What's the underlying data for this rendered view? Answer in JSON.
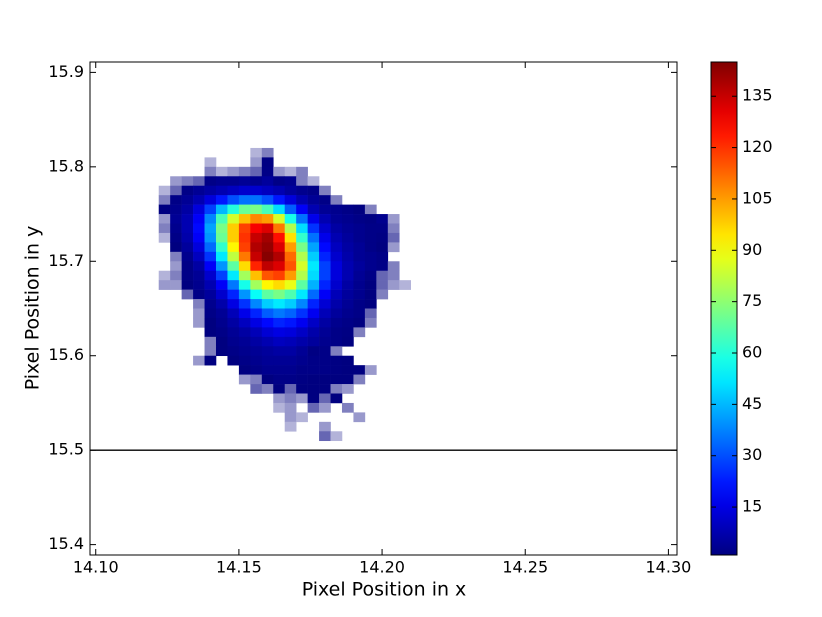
{
  "chart_data": {
    "type": "heatmap",
    "xlabel": "Pixel Position in x",
    "ylabel": "Pixel Position in y",
    "xlim": [
      14.098,
      14.303
    ],
    "ylim": [
      15.389,
      15.911
    ],
    "xticks": [
      {
        "value": 14.1,
        "label": "14.10"
      },
      14.15,
      {
        "value": 14.2,
        "label": "14.20"
      },
      14.25,
      {
        "value": 14.3,
        "label": "14.30"
      }
    ],
    "yticks": [
      15.4,
      15.5,
      15.6,
      15.7,
      15.8,
      15.9
    ],
    "hline": 15.5,
    "hline_color": "#000000",
    "colormap": "jet",
    "clim": [
      1,
      145
    ],
    "cticks": [
      15,
      30,
      45,
      60,
      75,
      90,
      105,
      120,
      135
    ],
    "x_bins": [
      14.122,
      14.126,
      14.13,
      14.134,
      14.138,
      14.142,
      14.146,
      14.15,
      14.154,
      14.158,
      14.162,
      14.166,
      14.17,
      14.174,
      14.178,
      14.182,
      14.186,
      14.19,
      14.194,
      14.198,
      14.202,
      14.206,
      14.21
    ],
    "y_bins": [
      15.82,
      15.81,
      15.8,
      15.79,
      15.78,
      15.77,
      15.76,
      15.75,
      15.74,
      15.73,
      15.72,
      15.71,
      15.7,
      15.69,
      15.68,
      15.67,
      15.66,
      15.65,
      15.64,
      15.63,
      15.62,
      15.61,
      15.6,
      15.59,
      15.58,
      15.57,
      15.56,
      15.55,
      15.54,
      15.53,
      15.52,
      15.51
    ],
    "z": [
      [
        null,
        null,
        null,
        null,
        null,
        null,
        null,
        null,
        0.3,
        0.5,
        null,
        null,
        null,
        null,
        null,
        null,
        null,
        null,
        null,
        null,
        null,
        null
      ],
      [
        null,
        null,
        null,
        null,
        0.3,
        null,
        null,
        null,
        0.4,
        1.5,
        null,
        null,
        null,
        null,
        null,
        null,
        null,
        null,
        null,
        null,
        null,
        null
      ],
      [
        null,
        null,
        null,
        null,
        0.5,
        0.3,
        0.4,
        0.5,
        0.6,
        2,
        0.4,
        0.3,
        0.5,
        null,
        null,
        null,
        null,
        null,
        null,
        null,
        null,
        null
      ],
      [
        null,
        0.4,
        0.5,
        0.6,
        2,
        3,
        3,
        4,
        3,
        5,
        2,
        3,
        0.5,
        0.3,
        null,
        null,
        null,
        null,
        null,
        null,
        null,
        null
      ],
      [
        0.3,
        0.6,
        2,
        4,
        6,
        8,
        10,
        12,
        12,
        10,
        8,
        5,
        3,
        2,
        0.5,
        null,
        null,
        null,
        null,
        null,
        null,
        null
      ],
      [
        0.5,
        2,
        4,
        8,
        14,
        22,
        30,
        35,
        35,
        30,
        22,
        14,
        8,
        4,
        2,
        0.5,
        null,
        null,
        null,
        null,
        null,
        null
      ],
      [
        1,
        3,
        6,
        14,
        28,
        45,
        60,
        70,
        72,
        65,
        50,
        32,
        18,
        8,
        4,
        3,
        2,
        1,
        0.5,
        null,
        null,
        null
      ],
      [
        0.4,
        4,
        8,
        18,
        38,
        65,
        85,
        100,
        108,
        105,
        85,
        58,
        35,
        16,
        8,
        4,
        3,
        2,
        1.5,
        3,
        0.4,
        null
      ],
      [
        0.5,
        3,
        8,
        20,
        42,
        72,
        98,
        118,
        128,
        132,
        110,
        80,
        50,
        26,
        12,
        6,
        4,
        3,
        2,
        2,
        0.5,
        null
      ],
      [
        0.3,
        2,
        7,
        18,
        40,
        70,
        98,
        120,
        135,
        140,
        125,
        95,
        62,
        35,
        16,
        8,
        5,
        3,
        2,
        1.5,
        0.6,
        null
      ],
      [
        null,
        1,
        5,
        14,
        34,
        62,
        92,
        118,
        138,
        142,
        132,
        105,
        72,
        42,
        20,
        10,
        6,
        4,
        2,
        1,
        0.4,
        null
      ],
      [
        null,
        0.5,
        3,
        10,
        26,
        52,
        82,
        110,
        135,
        144,
        138,
        112,
        80,
        48,
        24,
        12,
        7,
        4,
        3,
        2,
        null,
        null
      ],
      [
        null,
        0.4,
        2,
        6,
        18,
        40,
        68,
        96,
        122,
        136,
        132,
        115,
        85,
        52,
        28,
        14,
        8,
        5,
        3,
        2,
        0.5,
        null
      ],
      [
        0.3,
        0.5,
        2,
        4,
        12,
        28,
        52,
        78,
        100,
        115,
        118,
        105,
        80,
        50,
        28,
        14,
        8,
        4,
        2,
        0.6,
        0.5,
        null
      ],
      [
        0.4,
        0.4,
        1,
        3,
        8,
        18,
        36,
        58,
        78,
        92,
        96,
        88,
        68,
        44,
        24,
        12,
        6,
        3,
        1,
        0.6,
        0.4,
        0.3
      ],
      [
        null,
        null,
        0.6,
        2,
        5,
        12,
        24,
        40,
        56,
        68,
        72,
        66,
        52,
        34,
        18,
        9,
        5,
        3,
        1,
        0.5,
        null,
        null
      ],
      [
        null,
        null,
        null,
        0.5,
        3,
        7,
        15,
        26,
        38,
        48,
        52,
        48,
        38,
        24,
        13,
        7,
        4,
        2,
        1,
        null,
        null,
        null
      ],
      [
        null,
        null,
        null,
        0.4,
        2,
        4,
        9,
        16,
        24,
        32,
        36,
        33,
        26,
        17,
        9,
        5,
        3,
        2,
        0.6,
        null,
        null,
        null
      ],
      [
        null,
        null,
        null,
        0.4,
        1,
        3,
        6,
        10,
        15,
        20,
        24,
        22,
        17,
        11,
        6,
        3,
        2,
        1,
        0.5,
        null,
        null,
        null
      ],
      [
        null,
        null,
        null,
        null,
        1,
        2,
        4,
        6,
        9,
        13,
        15,
        14,
        11,
        7,
        4,
        2,
        1.5,
        0.5,
        null,
        null,
        null,
        null
      ],
      [
        null,
        null,
        null,
        null,
        0.5,
        1,
        3,
        4,
        6,
        8,
        10,
        9,
        7,
        5,
        3,
        2,
        1,
        null,
        null,
        null,
        null,
        null
      ],
      [
        null,
        null,
        null,
        null,
        0.5,
        1,
        2,
        3,
        4,
        5,
        6,
        6,
        4,
        1.5,
        2,
        0.5,
        null,
        null,
        null,
        null,
        null,
        null
      ],
      [
        null,
        null,
        null,
        0.4,
        1,
        null,
        1,
        2,
        3,
        4,
        4,
        4,
        3,
        2,
        2,
        1.5,
        1,
        null,
        null,
        null,
        null,
        null
      ],
      [
        null,
        null,
        null,
        null,
        null,
        null,
        null,
        1,
        2,
        3,
        3,
        3,
        2,
        2,
        2,
        1.5,
        1,
        1,
        0.4,
        null,
        null,
        null
      ],
      [
        null,
        null,
        null,
        null,
        null,
        null,
        null,
        0.4,
        0.5,
        1,
        2,
        2,
        1.5,
        1,
        1,
        1,
        1,
        0.5,
        null,
        null,
        null,
        null
      ],
      [
        null,
        null,
        null,
        null,
        null,
        null,
        null,
        null,
        0.6,
        0.5,
        1,
        0.6,
        1,
        1,
        1,
        0.5,
        0.4,
        null,
        null,
        null,
        null,
        null
      ],
      [
        null,
        null,
        null,
        null,
        null,
        null,
        null,
        null,
        null,
        null,
        0.4,
        0.5,
        0.4,
        1,
        0.6,
        1,
        null,
        null,
        null,
        null,
        null,
        null
      ],
      [
        null,
        null,
        null,
        null,
        null,
        null,
        null,
        null,
        null,
        null,
        0.3,
        0.4,
        null,
        0.6,
        0.4,
        null,
        0.5,
        null,
        null,
        null,
        null,
        null
      ],
      [
        null,
        null,
        null,
        null,
        null,
        null,
        null,
        null,
        null,
        null,
        null,
        0.4,
        0.3,
        null,
        null,
        null,
        null,
        0.4,
        null,
        null,
        null,
        null
      ],
      [
        null,
        null,
        null,
        null,
        null,
        null,
        null,
        null,
        null,
        null,
        null,
        0.3,
        null,
        null,
        0.4,
        null,
        null,
        null,
        null,
        null,
        null,
        null
      ],
      [
        null,
        null,
        null,
        null,
        null,
        null,
        null,
        null,
        null,
        null,
        null,
        null,
        null,
        null,
        0.6,
        0.3,
        null,
        null,
        null,
        null,
        null,
        null
      ]
    ]
  }
}
